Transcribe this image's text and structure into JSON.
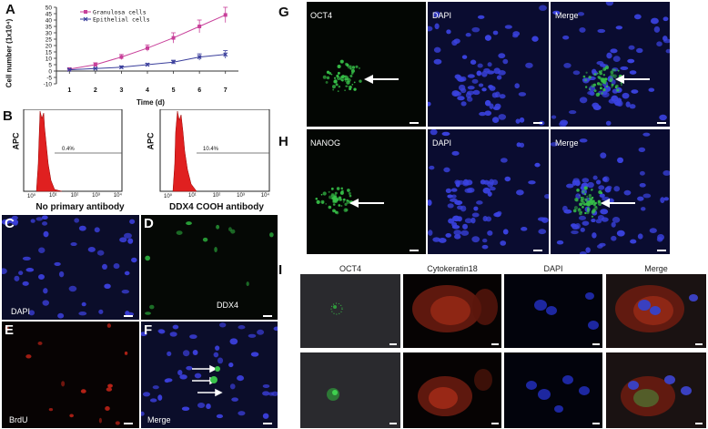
{
  "panels": {
    "A": "A",
    "B": "B",
    "C": "C",
    "D": "D",
    "E": "E",
    "F": "F",
    "G": "G",
    "H": "H",
    "I": "I"
  },
  "chart_data": {
    "type": "line",
    "ylabel": "Cell number (1x10⁴)",
    "xlabel": "Time (d)",
    "x": [
      1,
      2,
      3,
      4,
      5,
      6,
      7
    ],
    "y_ticks": [
      -10,
      -5,
      0,
      5,
      10,
      15,
      20,
      25,
      30,
      35,
      40,
      45,
      50
    ],
    "ylim": [
      -10,
      50
    ],
    "series": [
      {
        "name": "Granulosa cells",
        "color": "#c8409a",
        "values": [
          1.5,
          5,
          11,
          18,
          26,
          35,
          44
        ],
        "err": [
          1,
          1.5,
          2,
          2.5,
          4,
          5,
          6
        ]
      },
      {
        "name": "Epithelial cells",
        "color": "#3b3f9c",
        "values": [
          1,
          2,
          3,
          5,
          7,
          11,
          13
        ],
        "err": [
          0.5,
          0.5,
          1,
          1,
          1.5,
          2.5,
          3
        ]
      }
    ]
  },
  "flow": [
    {
      "y_label": "APC",
      "pct": "0.4%",
      "caption": "No primary antibody",
      "ticks": [
        "10⁰",
        "10¹",
        "10²",
        "10³",
        "10⁴"
      ]
    },
    {
      "y_label": "APC",
      "pct": "10.4%",
      "caption": "DDX4 COOH antibody",
      "ticks": [
        "10⁰",
        "10¹",
        "10²",
        "10³",
        "10⁴"
      ]
    }
  ],
  "micrographs_left": {
    "C": "DAPI",
    "D": "DDX4",
    "E": "BrdU",
    "F": "Merge"
  },
  "row_G": [
    "OCT4",
    "DAPI",
    "Merge"
  ],
  "row_H": [
    "NANOG",
    "DAPI",
    "Merge"
  ],
  "panel_I_headers": [
    "OCT4",
    "Cytokeratin18",
    "DAPI",
    "Merge"
  ],
  "colors": {
    "dapi": "#1f2bb8",
    "gfp": "#39c24a",
    "red": "#d33020",
    "bg_dark": "#050505"
  }
}
